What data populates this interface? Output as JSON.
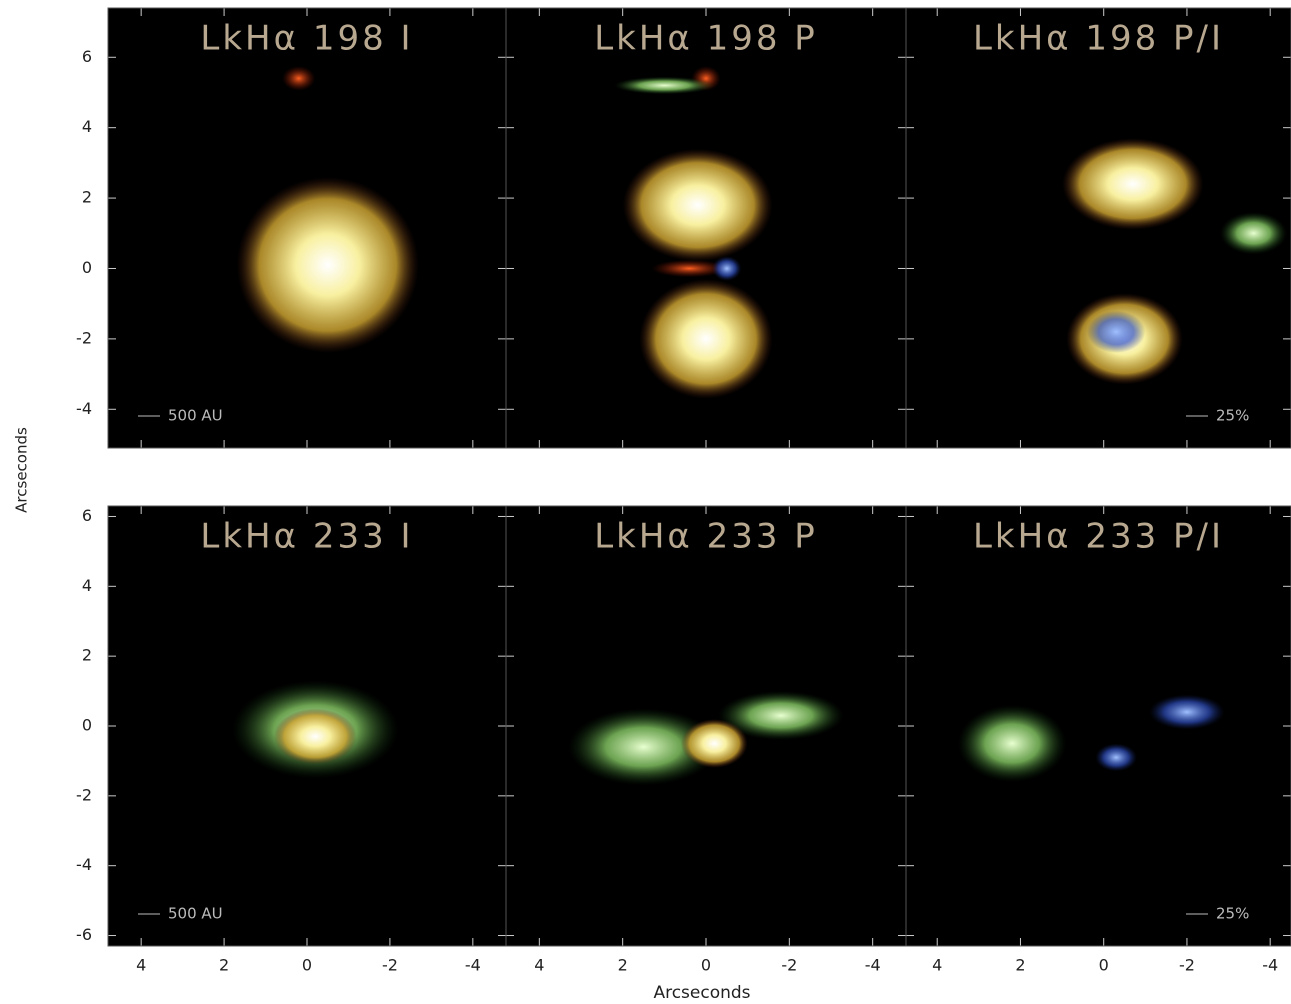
{
  "figure": {
    "xlabel": "Arcseconds",
    "ylabel": "Arcseconds"
  },
  "chart_data": [
    {
      "type": "image",
      "title": "LkHα 198 I",
      "scale_label": "500 AU",
      "xlim": [
        4.8,
        -4.8
      ],
      "ylim": [
        -5.1,
        7.4
      ],
      "xticks": [
        4,
        2,
        0,
        -2,
        -4
      ],
      "yticks": [
        -4,
        -2,
        0,
        2,
        4,
        6
      ]
    },
    {
      "type": "image",
      "title": "LkHα 198 P",
      "xlim": [
        4.8,
        -4.8
      ],
      "ylim": [
        -5.1,
        7.4
      ],
      "xticks": [
        4,
        2,
        0,
        -2,
        -4
      ],
      "yticks": [
        -4,
        -2,
        0,
        2,
        4,
        6
      ]
    },
    {
      "type": "image",
      "title": "LkHα 198 P/I",
      "scale_label": "25%",
      "xlim": [
        4.75,
        -4.5
      ],
      "ylim": [
        -5.1,
        7.4
      ],
      "xticks": [
        4,
        2,
        0,
        -2,
        -4
      ],
      "yticks": [
        -4,
        -2,
        0,
        2,
        4,
        6
      ]
    },
    {
      "type": "image",
      "title": "LkHα 233 I",
      "scale_label": "500 AU",
      "xlim": [
        4.8,
        -4.8
      ],
      "ylim": [
        -6.3,
        6.3
      ],
      "xticks": [
        4,
        2,
        0,
        -2,
        -4
      ],
      "yticks": [
        -6,
        -4,
        -2,
        0,
        2,
        4,
        6
      ]
    },
    {
      "type": "image",
      "title": "LkHα 233 P",
      "xlim": [
        4.8,
        -4.8
      ],
      "ylim": [
        -6.3,
        6.3
      ],
      "xticks": [
        4,
        2,
        0,
        -2,
        -4
      ],
      "yticks": [
        -6,
        -4,
        -2,
        0,
        2,
        4,
        6
      ]
    },
    {
      "type": "image",
      "title": "LkHα 233 P/I",
      "scale_label": "25%",
      "xlim": [
        4.75,
        -4.5
      ],
      "ylim": [
        -6.3,
        6.3
      ],
      "xticks": [
        4,
        2,
        0,
        -2,
        -4
      ],
      "yticks": [
        -6,
        -4,
        -2,
        0,
        2,
        4,
        6
      ]
    }
  ]
}
